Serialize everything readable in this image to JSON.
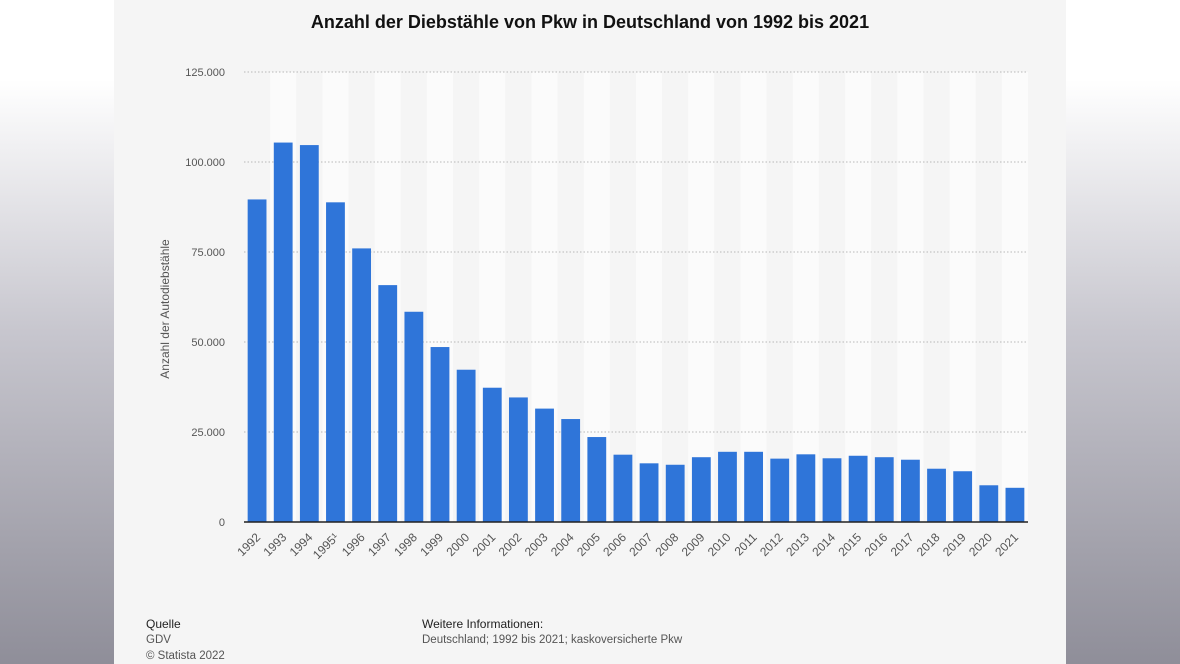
{
  "chart_data": {
    "type": "bar",
    "title": "Anzahl der Diebstähle von Pkw in Deutschland von 1992 bis 2021",
    "xlabel": "",
    "ylabel": "Anzahl der Autodiebstähle",
    "ylim": [
      0,
      125000
    ],
    "yticks": [
      0,
      25000,
      50000,
      75000,
      100000,
      125000
    ],
    "ytick_labels": [
      "0",
      "25.000",
      "50.000",
      "75.000",
      "100.000",
      "125.000"
    ],
    "categories": [
      "1992",
      "1993",
      "1994",
      "1995¹",
      "1996",
      "1997",
      "1998",
      "1999",
      "2000",
      "2001",
      "2002",
      "2003",
      "2004",
      "2005",
      "2006",
      "2007",
      "2008",
      "2009",
      "2010",
      "2011",
      "2012",
      "2013",
      "2014",
      "2015",
      "2016",
      "2017",
      "2018",
      "2019",
      "2020",
      "2021"
    ],
    "values": [
      89600,
      105400,
      104700,
      88800,
      76000,
      65800,
      58400,
      48600,
      42300,
      37300,
      34600,
      31500,
      28600,
      23600,
      18700,
      16300,
      15900,
      18000,
      19500,
      19500,
      17600,
      18800,
      17700,
      18400,
      18000,
      17300,
      14800,
      14100,
      10200,
      9500
    ],
    "bar_color": "#2f75d9",
    "grid": true
  },
  "footer": {
    "source_heading": "Quelle",
    "source": "GDV",
    "copyright": "© Statista 2022",
    "info_heading": "Weitere Informationen:",
    "info": "Deutschland; 1992 bis 2021; kaskoversicherte Pkw"
  }
}
